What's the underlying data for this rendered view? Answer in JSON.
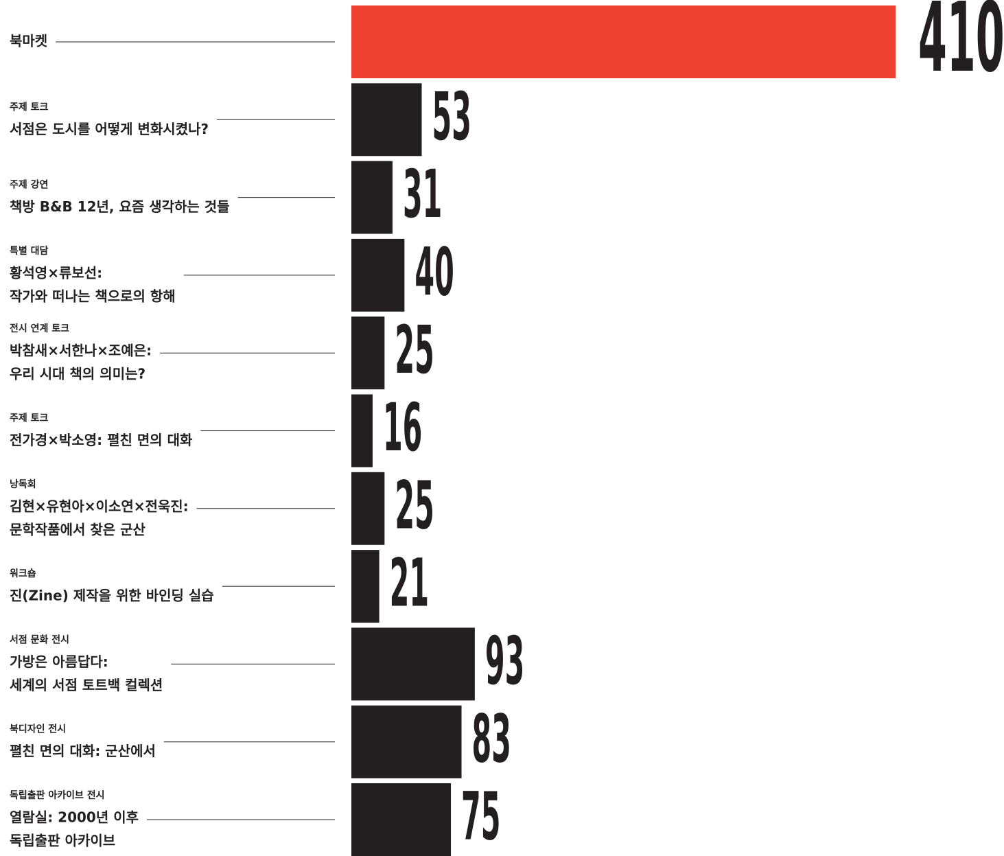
{
  "chart_data": {
    "type": "bar",
    "categories": [
      {
        "lines": [
          "북마켓"
        ]
      },
      {
        "kicker": "주제 토크",
        "lines": [
          "서점은 도시를 어떻게 변화시켰나?"
        ]
      },
      {
        "kicker": "주제 강연",
        "lines": [
          "책방 B&B 12년, 요즘 생각하는 것들"
        ]
      },
      {
        "kicker": "특별 대담",
        "lines": [
          "황석영×류보선:",
          "작가와 떠나는 책으로의 항해"
        ]
      },
      {
        "kicker": "전시 연계 토크",
        "lines": [
          "박참새×서한나×조예은:",
          "우리 시대 책의 의미는?"
        ]
      },
      {
        "kicker": "주제 토크",
        "lines": [
          "전가경×박소영: 펼친 면의 대화"
        ]
      },
      {
        "kicker": "낭독회",
        "lines": [
          "김현×유현아×이소연×전욱진:",
          "문학작품에서 찾은 군산"
        ]
      },
      {
        "kicker": "워크숍",
        "lines": [
          "진(Zine) 제작을 위한 바인딩 실습"
        ]
      },
      {
        "kicker": "서점 문화 전시",
        "lines": [
          "가방은 아름답다:",
          "세계의 서점 토트백 컬렉션"
        ]
      },
      {
        "kicker": "북디자인 전시",
        "lines": [
          "펼친 면의 대화: 군산에서"
        ]
      },
      {
        "kicker": "독립출판 아카이브 전시",
        "lines": [
          "열람실: 2000년 이후",
          "독립출판 아카이브"
        ]
      }
    ],
    "values": [
      410,
      53,
      31,
      40,
      25,
      16,
      25,
      21,
      93,
      83,
      75
    ],
    "colors": [
      "#ee4130",
      "#231f20",
      "#231f20",
      "#231f20",
      "#231f20",
      "#231f20",
      "#231f20",
      "#231f20",
      "#231f20",
      "#231f20",
      "#231f20"
    ]
  }
}
